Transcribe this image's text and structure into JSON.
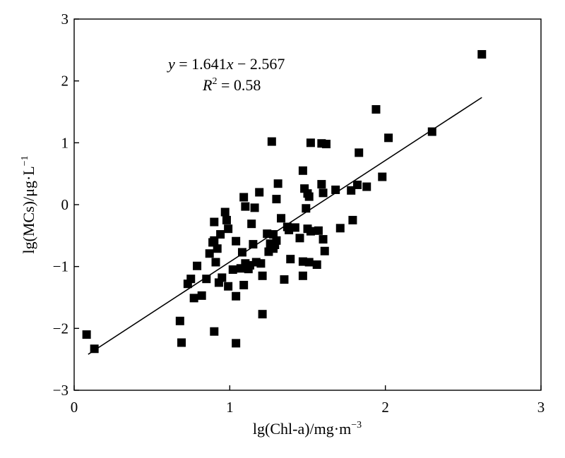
{
  "chart_data": {
    "type": "scatter",
    "xlabel_base": "lg(Chl-a)/mg·m",
    "xlabel_exp": "−3",
    "ylabel_base": "lg(MCs)/μg·L",
    "ylabel_exp": "−1",
    "xlim": [
      0,
      3
    ],
    "ylim": [
      -3,
      3
    ],
    "x_ticks": [
      0,
      1,
      2,
      3
    ],
    "x_tick_labels": [
      "0",
      "1",
      "2",
      "3"
    ],
    "y_ticks": [
      -3,
      -2,
      -1,
      0,
      1,
      2,
      3
    ],
    "y_tick_labels": [
      "−3",
      "−2",
      "−1",
      "0",
      "1",
      "2",
      "3"
    ],
    "grid": false,
    "marker": "square",
    "marker_color": "#000000",
    "line_color": "#000000",
    "annotations": {
      "eq_y": "y",
      "eq_eq": " = 1.641",
      "eq_x": "x",
      "eq_rest": " − 2.567",
      "r2_R": "R",
      "r2_sup": "2",
      "r2_val": " = 0.58"
    },
    "fit_line": {
      "slope": 1.641,
      "intercept": -2.567,
      "x_range": [
        0.09,
        2.62
      ]
    },
    "points": [
      [
        0.08,
        -2.1
      ],
      [
        0.13,
        -2.33
      ],
      [
        0.68,
        -1.88
      ],
      [
        0.69,
        -2.23
      ],
      [
        0.73,
        -1.28
      ],
      [
        0.75,
        -1.2
      ],
      [
        0.77,
        -1.51
      ],
      [
        0.79,
        -0.99
      ],
      [
        0.82,
        -1.47
      ],
      [
        0.85,
        -1.2
      ],
      [
        0.87,
        -0.79
      ],
      [
        0.89,
        -0.61
      ],
      [
        0.9,
        -0.28
      ],
      [
        0.9,
        -0.58
      ],
      [
        0.91,
        -0.93
      ],
      [
        0.9,
        -2.05
      ],
      [
        0.92,
        -0.71
      ],
      [
        0.93,
        -1.26
      ],
      [
        0.94,
        -0.48
      ],
      [
        0.95,
        -1.18
      ],
      [
        0.97,
        -0.12
      ],
      [
        0.98,
        -0.25
      ],
      [
        0.99,
        -0.39
      ],
      [
        0.99,
        -1.32
      ],
      [
        1.02,
        -1.05
      ],
      [
        1.04,
        -1.48
      ],
      [
        1.04,
        -0.59
      ],
      [
        1.04,
        -2.24
      ],
      [
        1.07,
        -1.03
      ],
      [
        1.08,
        -0.77
      ],
      [
        1.09,
        0.12
      ],
      [
        1.09,
        -1.3
      ],
      [
        1.1,
        -0.03
      ],
      [
        1.1,
        -0.95
      ],
      [
        1.12,
        -1.04
      ],
      [
        1.13,
        -0.98
      ],
      [
        1.14,
        -0.31
      ],
      [
        1.15,
        -0.64
      ],
      [
        1.16,
        -0.05
      ],
      [
        1.17,
        -0.93
      ],
      [
        1.19,
        0.2
      ],
      [
        1.2,
        -0.95
      ],
      [
        1.21,
        -1.15
      ],
      [
        1.21,
        -1.77
      ],
      [
        1.24,
        -0.47
      ],
      [
        1.25,
        -0.76
      ],
      [
        1.26,
        -0.63
      ],
      [
        1.27,
        1.02
      ],
      [
        1.28,
        -0.71
      ],
      [
        1.28,
        -0.48
      ],
      [
        1.29,
        -0.65
      ],
      [
        1.3,
        0.09
      ],
      [
        1.31,
        0.34
      ],
      [
        1.3,
        -0.58
      ],
      [
        1.33,
        -0.22
      ],
      [
        1.35,
        -1.21
      ],
      [
        1.37,
        -0.36
      ],
      [
        1.38,
        -0.41
      ],
      [
        1.39,
        -0.88
      ],
      [
        1.42,
        -0.37
      ],
      [
        1.45,
        -0.54
      ],
      [
        1.47,
        0.55
      ],
      [
        1.47,
        -0.92
      ],
      [
        1.47,
        -1.15
      ],
      [
        1.48,
        0.26
      ],
      [
        1.49,
        -0.06
      ],
      [
        1.5,
        -0.39
      ],
      [
        1.5,
        0.18
      ],
      [
        1.51,
        0.13
      ],
      [
        1.51,
        -0.93
      ],
      [
        1.52,
        -0.43
      ],
      [
        1.52,
        1.0
      ],
      [
        1.56,
        -0.97
      ],
      [
        1.57,
        -0.42
      ],
      [
        1.59,
        0.33
      ],
      [
        1.59,
        0.99
      ],
      [
        1.6,
        0.19
      ],
      [
        1.6,
        -0.56
      ],
      [
        1.61,
        -0.75
      ],
      [
        1.62,
        0.98
      ],
      [
        1.68,
        0.24
      ],
      [
        1.71,
        -0.38
      ],
      [
        1.78,
        0.23
      ],
      [
        1.79,
        -0.25
      ],
      [
        1.82,
        0.32
      ],
      [
        1.83,
        0.84
      ],
      [
        1.88,
        0.29
      ],
      [
        1.94,
        1.54
      ],
      [
        1.98,
        0.45
      ],
      [
        2.02,
        1.08
      ],
      [
        2.3,
        1.18
      ],
      [
        2.62,
        2.43
      ]
    ]
  }
}
